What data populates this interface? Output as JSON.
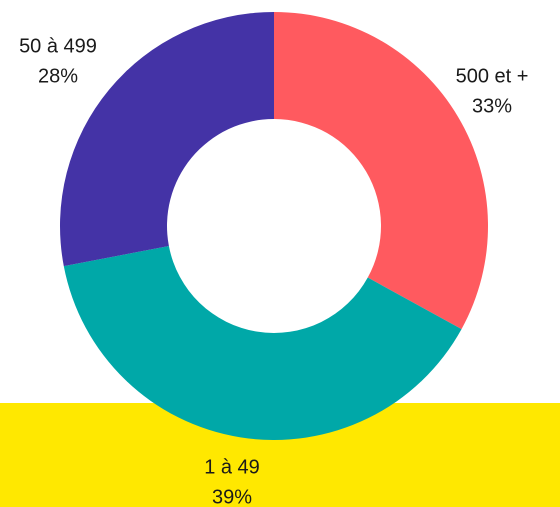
{
  "chart_data": {
    "type": "donut",
    "categories": [
      "500 et +",
      "1 à 49",
      "50 à 499"
    ],
    "values": [
      33,
      39,
      28
    ],
    "value_labels": [
      "33%",
      "39%",
      "28%"
    ],
    "colors": [
      "#ff5a5f",
      "#00a8a8",
      "#4433a6"
    ]
  }
}
